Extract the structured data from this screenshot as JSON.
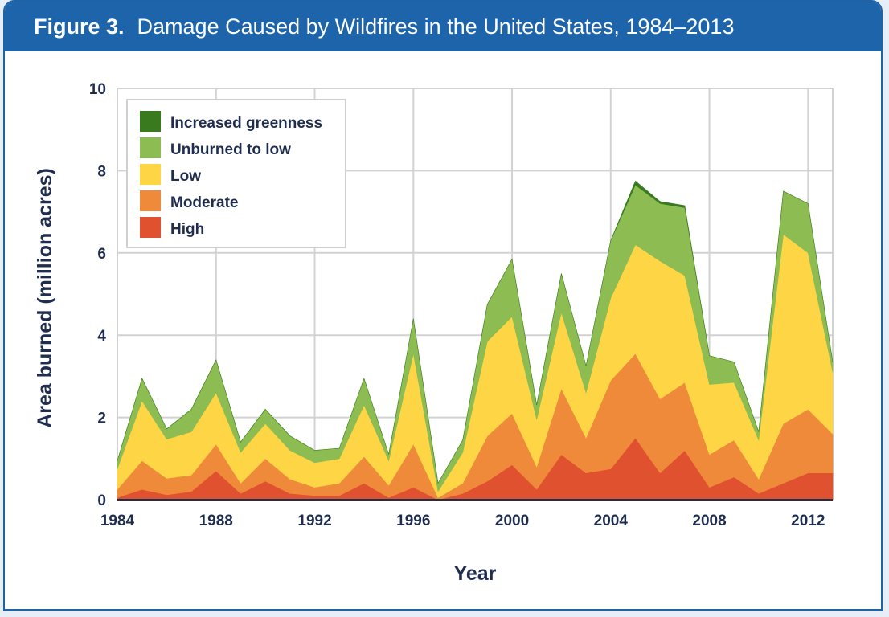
{
  "figure": {
    "label": "Figure 3.",
    "title": "Damage Caused by Wildfires in the United States, 1984–2013"
  },
  "colors": {
    "header_bg": "#1d64ab",
    "high": "#e0512f",
    "moderate": "#ef8a3a",
    "low": "#fed545",
    "unburned_to_low": "#8cbc52",
    "increased_greenness": "#3a7a1f"
  },
  "chart_data": {
    "type": "area",
    "stacked": true,
    "xlabel": "Year",
    "ylabel": "Area burned (million acres)",
    "xlim": [
      1984,
      2013
    ],
    "ylim": [
      0,
      10
    ],
    "x_ticks": [
      "1984",
      "1988",
      "1992",
      "1996",
      "2000",
      "2004",
      "2008",
      "2012"
    ],
    "y_ticks": [
      "0",
      "2",
      "4",
      "6",
      "8",
      "10"
    ],
    "grid": true,
    "legend_position": "top-left",
    "x": [
      1984,
      1985,
      1986,
      1987,
      1988,
      1989,
      1990,
      1991,
      1992,
      1993,
      1994,
      1995,
      1996,
      1997,
      1998,
      1999,
      2000,
      2001,
      2002,
      2003,
      2004,
      2005,
      2006,
      2007,
      2008,
      2009,
      2010,
      2011,
      2012,
      2013
    ],
    "series": [
      {
        "name": "High",
        "color": "#e0512f",
        "values": [
          0.05,
          0.25,
          0.12,
          0.2,
          0.7,
          0.15,
          0.45,
          0.15,
          0.1,
          0.1,
          0.4,
          0.05,
          0.3,
          0.0,
          0.15,
          0.45,
          0.85,
          0.25,
          1.1,
          0.65,
          0.75,
          1.5,
          0.65,
          1.2,
          0.3,
          0.55,
          0.15,
          0.4,
          0.65,
          0.65
        ]
      },
      {
        "name": "Moderate",
        "color": "#ef8a3a",
        "values": [
          0.2,
          0.7,
          0.4,
          0.4,
          0.65,
          0.25,
          0.55,
          0.35,
          0.2,
          0.3,
          0.65,
          0.3,
          1.05,
          0.05,
          0.25,
          1.1,
          1.25,
          0.55,
          1.6,
          0.85,
          2.15,
          2.05,
          1.8,
          1.65,
          0.8,
          0.9,
          0.35,
          1.45,
          1.55,
          0.95
        ]
      },
      {
        "name": "Low",
        "color": "#fed545",
        "values": [
          0.5,
          1.45,
          0.95,
          1.05,
          1.25,
          0.75,
          0.85,
          0.7,
          0.6,
          0.6,
          1.25,
          0.6,
          2.2,
          0.15,
          0.75,
          2.3,
          2.35,
          1.15,
          1.85,
          1.1,
          2.0,
          2.65,
          3.35,
          2.6,
          1.7,
          1.4,
          0.95,
          4.6,
          3.8,
          1.5
        ]
      },
      {
        "name": "Unburned to low",
        "color": "#8cbc52",
        "values": [
          0.2,
          0.55,
          0.25,
          0.55,
          0.8,
          0.25,
          0.35,
          0.35,
          0.3,
          0.25,
          0.65,
          0.15,
          0.85,
          0.2,
          0.3,
          0.9,
          1.4,
          0.35,
          0.95,
          0.65,
          1.4,
          1.45,
          1.4,
          1.65,
          0.7,
          0.5,
          0.2,
          1.05,
          1.2,
          0.25
        ]
      },
      {
        "name": "Increased greenness",
        "color": "#3a7a1f",
        "values": [
          0,
          0,
          0,
          0,
          0,
          0,
          0,
          0,
          0,
          0,
          0,
          0,
          0,
          0,
          0,
          0,
          0,
          0,
          0,
          0,
          0,
          0.1,
          0.05,
          0.05,
          0,
          0,
          0,
          0,
          0,
          0
        ]
      }
    ]
  }
}
